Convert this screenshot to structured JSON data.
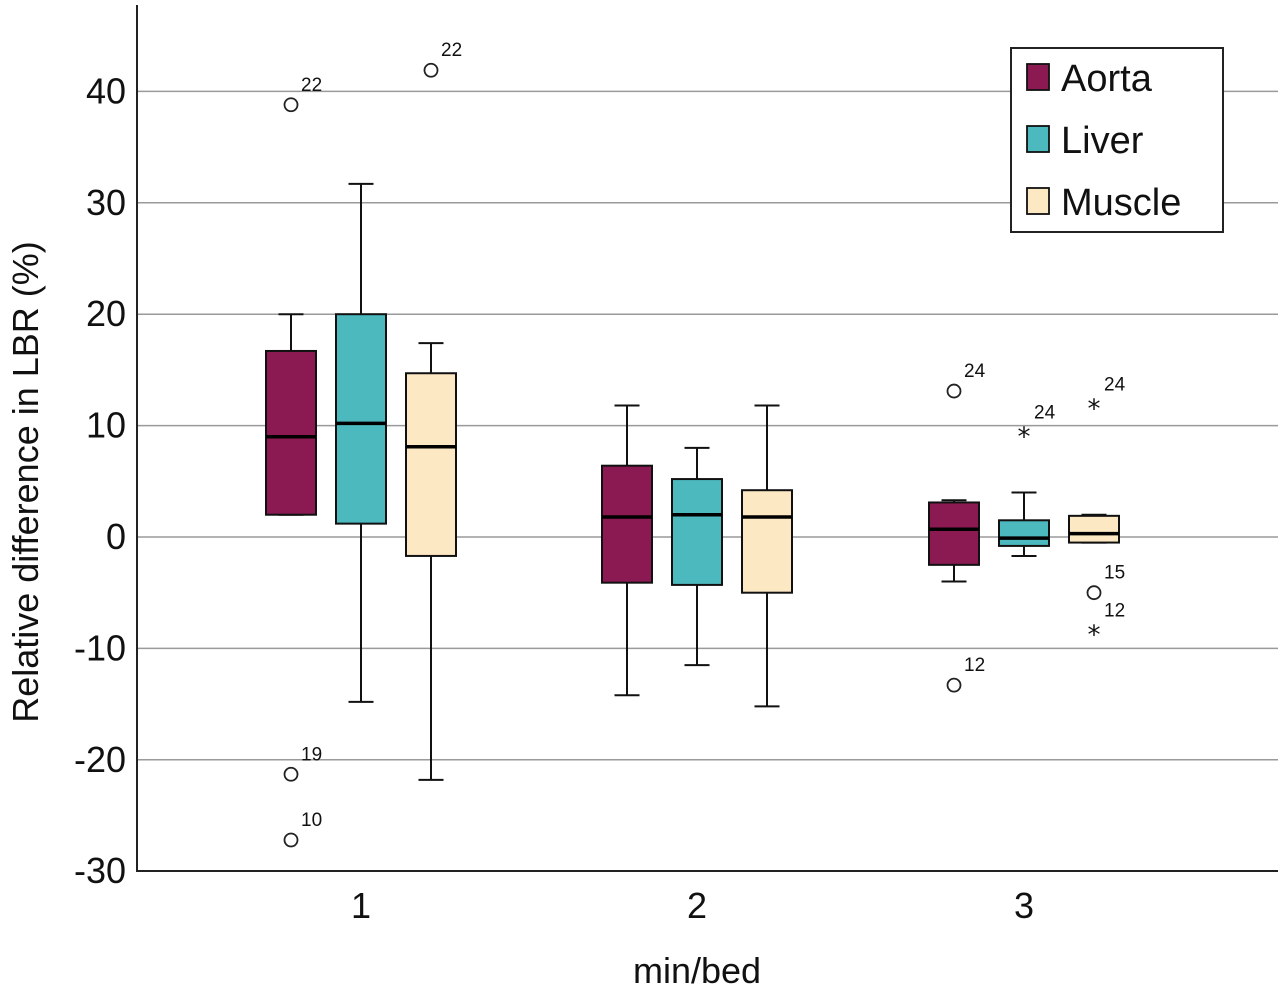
{
  "chart_data": {
    "type": "box",
    "xlabel": "min/bed",
    "ylabel": "Relative difference in LBR (%)",
    "ylim": [
      -30,
      47
    ],
    "yticks": [
      -30,
      -20,
      -10,
      0,
      10,
      20,
      30,
      40
    ],
    "grid": "horizontal",
    "legend_position": "top-right",
    "categories": [
      "1",
      "2",
      "3"
    ],
    "series": [
      {
        "name": "Aorta",
        "color": "#8B1A52",
        "boxes": [
          {
            "whisker_low": 2,
            "q1": 2,
            "median": 9,
            "q3": 16.7,
            "whisker_high": 20
          },
          {
            "whisker_low": -14.2,
            "q1": -4.1,
            "median": 1.8,
            "q3": 6.4,
            "whisker_high": 11.8
          },
          {
            "whisker_low": -4.0,
            "q1": -2.5,
            "median": 0.7,
            "q3": 3.1,
            "whisker_high": 3.3
          }
        ]
      },
      {
        "name": "Liver",
        "color": "#4CB9BE",
        "boxes": [
          {
            "whisker_low": -14.8,
            "q1": 1.2,
            "median": 10.2,
            "q3": 20,
            "whisker_high": 31.7
          },
          {
            "whisker_low": -11.5,
            "q1": -4.3,
            "median": 2.0,
            "q3": 5.2,
            "whisker_high": 8.0
          },
          {
            "whisker_low": -1.7,
            "q1": -0.8,
            "median": -0.1,
            "q3": 1.5,
            "whisker_high": 4.0
          }
        ]
      },
      {
        "name": "Muscle",
        "color": "#FDE8C4",
        "boxes": [
          {
            "whisker_low": -21.8,
            "q1": -1.7,
            "median": 8.1,
            "q3": 14.7,
            "whisker_high": 17.4
          },
          {
            "whisker_low": -15.2,
            "q1": -5.0,
            "median": 1.8,
            "q3": 4.2,
            "whisker_high": 11.8
          },
          {
            "whisker_low": -0.5,
            "q1": -0.5,
            "median": 0.3,
            "q3": 1.9,
            "whisker_high": 2.0
          }
        ]
      }
    ],
    "outliers": [
      {
        "series": "Aorta",
        "category": "1",
        "value": 38.8,
        "label": "22",
        "marker": "circle"
      },
      {
        "series": "Aorta",
        "category": "1",
        "value": -21.3,
        "label": "19",
        "marker": "circle"
      },
      {
        "series": "Aorta",
        "category": "1",
        "value": -27.2,
        "label": "10",
        "marker": "circle"
      },
      {
        "series": "Muscle",
        "category": "1",
        "value": 41.9,
        "label": "22",
        "marker": "circle"
      },
      {
        "series": "Aorta",
        "category": "3",
        "value": 13.1,
        "label": "24",
        "marker": "circle"
      },
      {
        "series": "Aorta",
        "category": "3",
        "value": -13.3,
        "label": "12",
        "marker": "circle"
      },
      {
        "series": "Liver",
        "category": "3",
        "value": 9.4,
        "label": "24",
        "marker": "star"
      },
      {
        "series": "Muscle",
        "category": "3",
        "value": 11.9,
        "label": "24",
        "marker": "star"
      },
      {
        "series": "Muscle",
        "category": "3",
        "value": -5.0,
        "label": "15",
        "marker": "circle"
      },
      {
        "series": "Muscle",
        "category": "3",
        "value": -8.4,
        "label": "12",
        "marker": "star"
      }
    ]
  }
}
